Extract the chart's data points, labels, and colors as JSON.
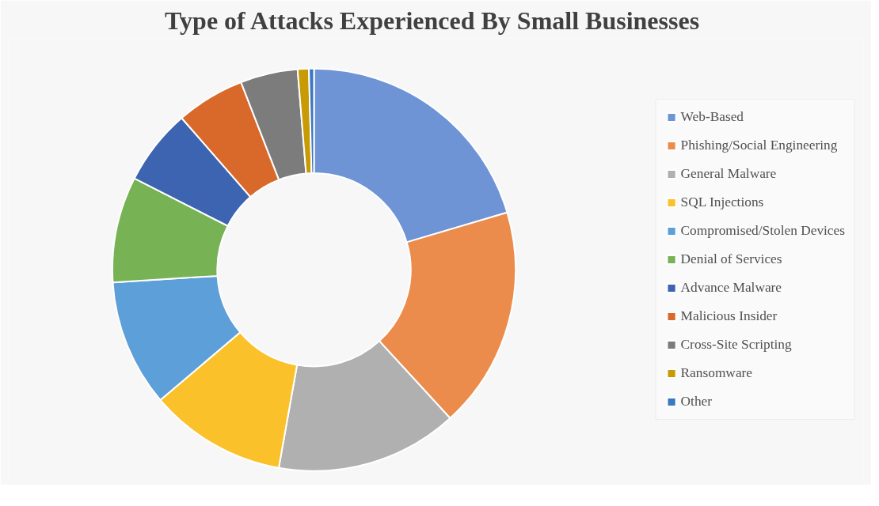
{
  "chart_data": {
    "type": "donut",
    "title": "Type of Attacks Experienced By  Small Businesses",
    "categories": [
      "Web-Based",
      "Phishing/Social Engineering",
      "General Malware",
      "SQL Injections",
      "Compromised/Stolen Devices",
      "Denial of Services",
      "Advance Malware",
      "Malicious Insider",
      "Cross-Site Scripting",
      "Ransomware",
      "Other"
    ],
    "values": [
      20.4,
      17.8,
      14.6,
      11.0,
      10.2,
      8.5,
      6.1,
      5.5,
      4.6,
      0.9,
      0.4
    ],
    "colors": [
      "#6f94d6",
      "#ec8c4c",
      "#b0b0b0",
      "#fbc12a",
      "#5d9fd9",
      "#77b255",
      "#3c64b0",
      "#d9692a",
      "#7c7c7c",
      "#c89a06",
      "#3a78c0"
    ],
    "legend": "right"
  }
}
